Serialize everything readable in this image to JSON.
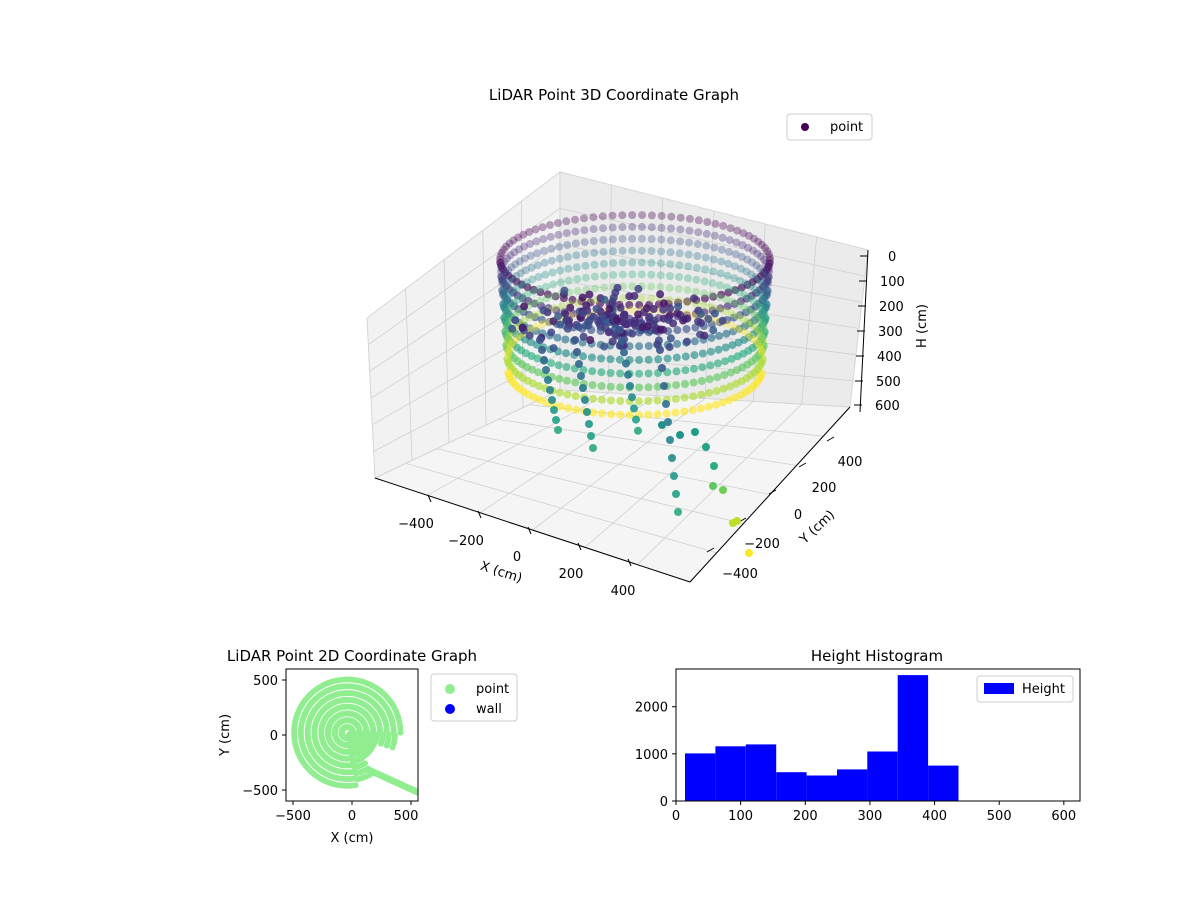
{
  "chart_data": [
    {
      "type": "scatter",
      "projection": "3d",
      "title": "LiDAR Point 3D Coordinate Graph",
      "xlabel": "X (cm)",
      "ylabel": "Y (cm)",
      "zlabel": "H (cm)",
      "xticks": [
        "−400",
        "−200",
        "0",
        "200",
        "400"
      ],
      "yticks": [
        "400",
        "200",
        "0",
        "−200",
        "−400"
      ],
      "zticks": [
        "0",
        "100",
        "200",
        "300",
        "400",
        "500",
        "600"
      ],
      "zlim": [
        0,
        600
      ],
      "z_inverted": true,
      "legend": [
        "point"
      ],
      "legend_placement": "upper-right",
      "colormap": "viridis",
      "grid": true
    },
    {
      "type": "scatter",
      "title": "LiDAR Point 2D Coordinate Graph",
      "xlabel": "X (cm)",
      "ylabel": "Y (cm)",
      "xticks": [
        "−500",
        "0",
        "500"
      ],
      "yticks": [
        "500",
        "0",
        "−500"
      ],
      "xlim": [
        -560,
        560
      ],
      "ylim": [
        -560,
        560
      ],
      "series": [
        {
          "name": "point",
          "color": "#90ee90"
        },
        {
          "name": "wall",
          "color": "#0000ff"
        }
      ],
      "legend_placement": "outside-right"
    },
    {
      "type": "bar",
      "title": "Height Histogram",
      "xlim": [
        0,
        625
      ],
      "ylim": [
        0,
        2800
      ],
      "xticks": [
        "0",
        "100",
        "200",
        "300",
        "400",
        "500",
        "600"
      ],
      "yticks": [
        "0",
        "1000",
        "2000"
      ],
      "bin_edges": [
        14,
        61,
        108,
        155,
        202,
        249,
        296,
        343,
        390,
        437
      ],
      "values": [
        1010,
        1160,
        1200,
        610,
        540,
        670,
        1050,
        2670,
        750
      ],
      "series": [
        {
          "name": "Height",
          "color": "#0000ff"
        }
      ],
      "legend_placement": "upper-right"
    }
  ]
}
